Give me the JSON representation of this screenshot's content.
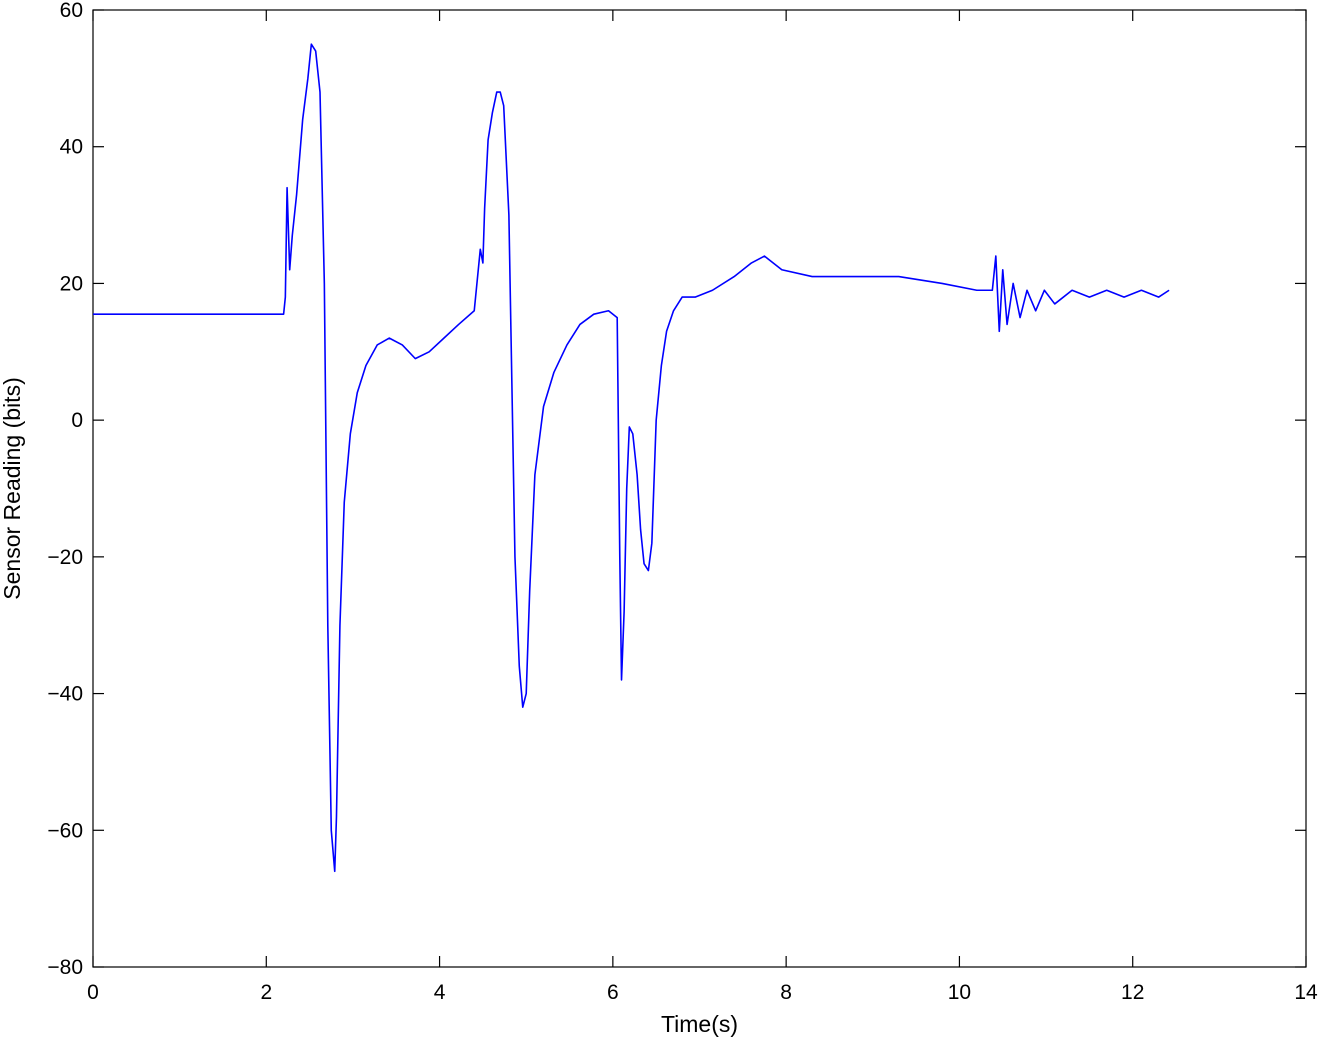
{
  "chart_data": {
    "type": "line",
    "title": "",
    "xlabel": "Time(s)",
    "ylabel": "Sensor Reading (bits)",
    "xlim": [
      0,
      14
    ],
    "ylim": [
      -80,
      60
    ],
    "x_ticks": [
      "0",
      "2",
      "4",
      "6",
      "8",
      "10",
      "12",
      "14"
    ],
    "y_ticks": [
      "60",
      "40",
      "20",
      "0",
      "−20",
      "−40",
      "−60",
      "−80"
    ],
    "grid": false,
    "legend": "none",
    "series": [
      {
        "color": "#0000ff",
        "x": [
          0,
          0.5,
          1.0,
          1.5,
          2.0,
          2.2,
          2.22,
          2.24,
          2.27,
          2.3,
          2.35,
          2.42,
          2.48,
          2.52,
          2.57,
          2.62,
          2.67,
          2.71,
          2.75,
          2.79,
          2.81,
          2.85,
          2.9,
          2.97,
          3.05,
          3.15,
          3.28,
          3.42,
          3.57,
          3.72,
          3.88,
          4.05,
          4.22,
          4.4,
          4.47,
          4.5,
          4.52,
          4.56,
          4.61,
          4.66,
          4.7,
          4.74,
          4.8,
          4.87,
          4.92,
          4.96,
          5.0,
          5.04,
          5.1,
          5.2,
          5.32,
          5.47,
          5.62,
          5.78,
          5.95,
          6.05,
          6.08,
          6.1,
          6.13,
          6.16,
          6.19,
          6.23,
          6.28,
          6.32,
          6.36,
          6.41,
          6.45,
          6.5,
          6.56,
          6.62,
          6.7,
          6.8,
          6.95,
          7.15,
          7.4,
          7.6,
          7.75,
          7.95,
          8.3,
          8.8,
          9.3,
          9.8,
          10.2,
          10.38,
          10.42,
          10.46,
          10.5,
          10.55,
          10.62,
          10.7,
          10.78,
          10.88,
          10.98,
          11.1,
          11.3,
          11.5,
          11.7,
          11.9,
          12.1,
          12.3,
          12.42
        ],
        "y": [
          15.5,
          15.5,
          15.5,
          15.5,
          15.5,
          15.5,
          18,
          34,
          22,
          27,
          33,
          44,
          50,
          55,
          54,
          48,
          20,
          -30,
          -60,
          -66,
          -58,
          -30,
          -12,
          -2,
          4,
          8,
          11,
          12,
          11,
          9,
          10,
          12,
          14,
          16,
          25,
          23,
          31,
          41,
          45,
          48,
          48,
          46,
          30,
          -20,
          -36,
          -42,
          -40,
          -25,
          -8,
          2,
          7,
          11,
          14,
          15.5,
          16,
          15,
          -20,
          -38,
          -28,
          -10,
          -1,
          -2,
          -8,
          -16,
          -21,
          -22,
          -18,
          0,
          8,
          13,
          16,
          18,
          18,
          19,
          21,
          23,
          24,
          22,
          21,
          21,
          21,
          20,
          19,
          19,
          24,
          13,
          22,
          14,
          20,
          15,
          19,
          16,
          19,
          17,
          19,
          18,
          19,
          18,
          19,
          18,
          19
        ]
      }
    ]
  }
}
